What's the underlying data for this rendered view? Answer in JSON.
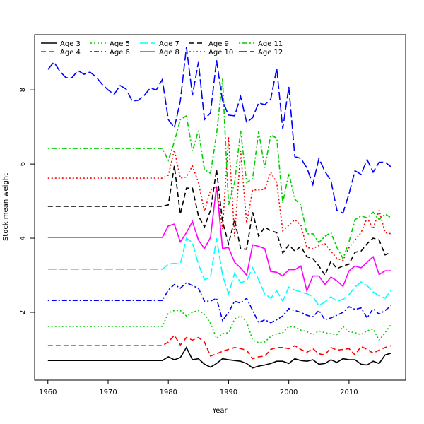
{
  "chart_data": {
    "type": "line",
    "title": "",
    "xlabel": "Year",
    "ylabel": "Stock mean weight",
    "xlim": [
      1957.8,
      2019.4
    ],
    "ylim": [
      0.17,
      9.49
    ],
    "xticks": [
      1960,
      1970,
      1980,
      1990,
      2000,
      2010
    ],
    "yticks": [
      2,
      4,
      6,
      8
    ],
    "grid": false,
    "legend_position": "top-left",
    "x": [
      1960,
      1961,
      1962,
      1963,
      1964,
      1965,
      1966,
      1967,
      1968,
      1969,
      1970,
      1971,
      1972,
      1973,
      1974,
      1975,
      1976,
      1977,
      1978,
      1979,
      1980,
      1981,
      1982,
      1983,
      1984,
      1985,
      1986,
      1987,
      1988,
      1989,
      1990,
      1991,
      1992,
      1993,
      1994,
      1995,
      1996,
      1997,
      1998,
      1999,
      2000,
      2001,
      2002,
      2003,
      2004,
      2005,
      2006,
      2007,
      2008,
      2009,
      2010,
      2011,
      2012,
      2013,
      2014,
      2015,
      2016,
      2017
    ],
    "series": [
      {
        "name": "Age 3",
        "color": "#000000",
        "style": "solid",
        "values": [
          0.7,
          0.7,
          0.7,
          0.7,
          0.7,
          0.7,
          0.7,
          0.7,
          0.7,
          0.7,
          0.7,
          0.7,
          0.7,
          0.7,
          0.7,
          0.7,
          0.7,
          0.7,
          0.7,
          0.7,
          0.8,
          0.72,
          0.78,
          1.05,
          0.72,
          0.75,
          0.6,
          0.52,
          0.62,
          0.75,
          0.72,
          0.7,
          0.68,
          0.62,
          0.5,
          0.55,
          0.58,
          0.62,
          0.68,
          0.68,
          0.62,
          0.75,
          0.7,
          0.68,
          0.72,
          0.6,
          0.62,
          0.72,
          0.65,
          0.75,
          0.72,
          0.72,
          0.6,
          0.58,
          0.68,
          0.62,
          0.85,
          0.9
        ]
      },
      {
        "name": "Age 4",
        "color": "#ff0000",
        "style": "dashed",
        "values": [
          1.1,
          1.1,
          1.1,
          1.1,
          1.1,
          1.1,
          1.1,
          1.1,
          1.1,
          1.1,
          1.1,
          1.1,
          1.1,
          1.1,
          1.1,
          1.1,
          1.1,
          1.1,
          1.1,
          1.1,
          1.2,
          1.38,
          1.12,
          1.32,
          1.25,
          1.32,
          1.2,
          0.82,
          0.88,
          0.95,
          1.0,
          1.05,
          1.02,
          0.98,
          0.75,
          0.8,
          0.82,
          1.0,
          1.05,
          1.05,
          1.02,
          1.1,
          1.0,
          0.92,
          1.02,
          0.88,
          0.85,
          1.05,
          0.98,
          1.0,
          1.02,
          0.85,
          1.08,
          1.0,
          0.9,
          0.98,
          1.05,
          1.1
        ]
      },
      {
        "name": "Age 5",
        "color": "#00cd00",
        "style": "dotted",
        "values": [
          1.62,
          1.62,
          1.62,
          1.62,
          1.62,
          1.62,
          1.62,
          1.62,
          1.62,
          1.62,
          1.62,
          1.62,
          1.62,
          1.62,
          1.62,
          1.62,
          1.62,
          1.62,
          1.62,
          1.62,
          1.98,
          2.05,
          2.05,
          1.9,
          2.0,
          2.05,
          1.95,
          1.7,
          1.3,
          1.42,
          1.45,
          1.82,
          1.9,
          1.75,
          1.25,
          1.18,
          1.2,
          1.35,
          1.42,
          1.45,
          1.62,
          1.6,
          1.52,
          1.48,
          1.4,
          1.5,
          1.45,
          1.42,
          1.4,
          1.62,
          1.48,
          1.45,
          1.4,
          1.5,
          1.55,
          1.25,
          1.45,
          1.68
        ]
      },
      {
        "name": "Age 6",
        "color": "#0000ff",
        "style": "dotdash",
        "values": [
          2.32,
          2.32,
          2.32,
          2.32,
          2.32,
          2.32,
          2.32,
          2.32,
          2.32,
          2.32,
          2.32,
          2.32,
          2.32,
          2.32,
          2.32,
          2.32,
          2.32,
          2.32,
          2.32,
          2.32,
          2.6,
          2.75,
          2.65,
          2.8,
          2.72,
          2.65,
          2.3,
          2.3,
          2.38,
          1.78,
          2.0,
          2.3,
          2.25,
          2.38,
          2.05,
          1.72,
          1.8,
          1.72,
          1.8,
          1.9,
          2.1,
          2.05,
          2.0,
          1.92,
          1.88,
          2.05,
          1.8,
          1.85,
          1.92,
          2.0,
          2.15,
          2.08,
          2.12,
          1.85,
          2.1,
          1.95,
          2.05,
          2.18
        ]
      },
      {
        "name": "Age 7",
        "color": "#00ffff",
        "style": "longdash",
        "values": [
          3.16,
          3.16,
          3.16,
          3.16,
          3.16,
          3.16,
          3.16,
          3.16,
          3.16,
          3.16,
          3.16,
          3.16,
          3.16,
          3.16,
          3.16,
          3.16,
          3.16,
          3.16,
          3.16,
          3.16,
          3.3,
          3.32,
          3.3,
          4.0,
          3.88,
          3.3,
          2.88,
          2.95,
          4.0,
          3.0,
          2.5,
          3.05,
          2.8,
          2.85,
          3.2,
          2.88,
          2.5,
          2.38,
          2.58,
          2.3,
          2.68,
          2.6,
          2.55,
          2.5,
          2.42,
          2.18,
          2.28,
          2.42,
          2.3,
          2.35,
          2.48,
          2.68,
          2.82,
          2.72,
          2.55,
          2.45,
          2.38,
          2.6
        ]
      },
      {
        "name": "Age 8",
        "color": "#ff00ff",
        "style": "solid",
        "values": [
          4.02,
          4.02,
          4.02,
          4.02,
          4.02,
          4.02,
          4.02,
          4.02,
          4.02,
          4.02,
          4.02,
          4.02,
          4.02,
          4.02,
          4.02,
          4.02,
          4.02,
          4.02,
          4.02,
          4.02,
          4.33,
          4.38,
          3.9,
          4.15,
          4.45,
          3.95,
          3.72,
          4.02,
          5.4,
          3.72,
          3.75,
          3.35,
          3.2,
          3.0,
          3.82,
          3.78,
          3.72,
          3.1,
          3.08,
          2.98,
          3.15,
          3.15,
          3.25,
          2.58,
          2.98,
          2.98,
          2.75,
          2.95,
          2.85,
          2.7,
          3.12,
          3.25,
          3.2,
          3.35,
          3.5,
          3.02,
          3.12,
          3.12
        ]
      },
      {
        "name": "Age 9",
        "color": "#000000",
        "style": "dashed",
        "values": [
          4.86,
          4.86,
          4.86,
          4.86,
          4.86,
          4.86,
          4.86,
          4.86,
          4.86,
          4.86,
          4.86,
          4.86,
          4.86,
          4.86,
          4.86,
          4.86,
          4.86,
          4.86,
          4.86,
          4.86,
          4.9,
          5.95,
          4.65,
          5.35,
          5.35,
          4.6,
          4.3,
          4.75,
          5.85,
          4.45,
          3.85,
          4.5,
          3.72,
          3.7,
          4.7,
          4.05,
          4.3,
          4.2,
          4.15,
          3.6,
          3.82,
          3.65,
          3.78,
          3.5,
          3.45,
          3.25,
          3.0,
          3.38,
          3.18,
          3.25,
          3.3,
          3.62,
          3.65,
          3.85,
          4.0,
          3.95,
          3.55,
          3.62
        ]
      },
      {
        "name": "Age 10",
        "color": "#ff0000",
        "style": "dotted",
        "values": [
          5.62,
          5.62,
          5.62,
          5.62,
          5.62,
          5.62,
          5.62,
          5.62,
          5.62,
          5.62,
          5.62,
          5.62,
          5.62,
          5.62,
          5.62,
          5.62,
          5.62,
          5.62,
          5.62,
          5.62,
          5.7,
          6.38,
          5.62,
          5.65,
          5.95,
          5.5,
          4.72,
          5.3,
          5.4,
          4.25,
          6.72,
          4.05,
          6.35,
          4.4,
          5.3,
          5.3,
          5.32,
          5.78,
          5.5,
          4.2,
          4.35,
          4.5,
          4.35,
          3.75,
          3.72,
          3.8,
          3.85,
          3.65,
          3.45,
          3.4,
          3.75,
          3.95,
          4.15,
          4.55,
          4.25,
          4.75,
          4.15,
          4.12
        ]
      },
      {
        "name": "Age 11",
        "color": "#00cd00",
        "style": "dotdash",
        "values": [
          6.42,
          6.42,
          6.42,
          6.42,
          6.42,
          6.42,
          6.42,
          6.42,
          6.42,
          6.42,
          6.42,
          6.42,
          6.42,
          6.42,
          6.42,
          6.42,
          6.42,
          6.42,
          6.42,
          6.42,
          6.1,
          6.6,
          7.2,
          7.3,
          6.35,
          6.9,
          5.85,
          5.75,
          6.8,
          8.3,
          4.9,
          5.5,
          6.9,
          5.5,
          5.6,
          6.88,
          5.9,
          6.78,
          6.7,
          4.95,
          5.75,
          5.05,
          4.9,
          4.12,
          4.12,
          3.88,
          4.05,
          4.15,
          3.75,
          3.45,
          3.9,
          4.5,
          4.6,
          4.55,
          4.7,
          4.5,
          4.65,
          4.55
        ]
      },
      {
        "name": "Age 12",
        "color": "#0000ff",
        "style": "longdash",
        "values": [
          8.55,
          8.75,
          8.5,
          8.33,
          8.33,
          8.52,
          8.42,
          8.48,
          8.35,
          8.15,
          8.0,
          7.88,
          8.12,
          8.02,
          7.7,
          7.72,
          7.85,
          8.05,
          8.0,
          8.28,
          7.2,
          6.98,
          7.7,
          9.15,
          7.85,
          8.75,
          7.2,
          7.38,
          8.8,
          7.7,
          7.32,
          7.3,
          7.82,
          7.12,
          7.25,
          7.65,
          7.6,
          7.75,
          8.58,
          6.95,
          8.08,
          6.2,
          6.15,
          5.9,
          5.45,
          6.15,
          5.8,
          5.55,
          4.75,
          4.68,
          5.2,
          5.82,
          5.72,
          6.12,
          5.78,
          6.05,
          6.05,
          5.92
        ]
      }
    ]
  }
}
